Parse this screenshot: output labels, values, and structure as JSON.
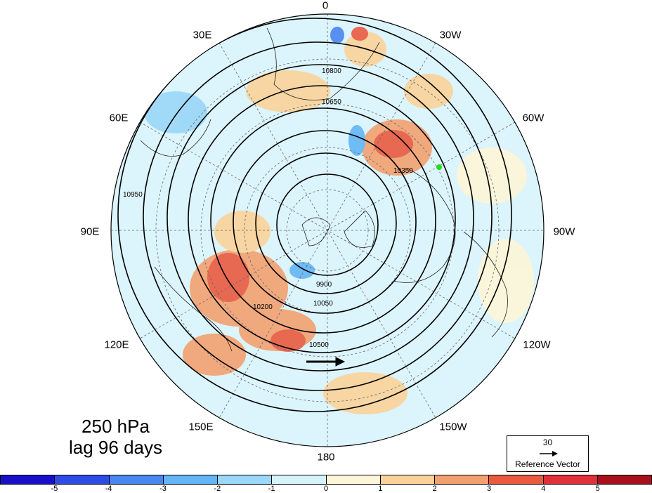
{
  "title": {
    "line1": "250 hPa",
    "line2": "lag 96 days"
  },
  "longitude_labels": [
    "0",
    "30W",
    "60W",
    "90W",
    "120W",
    "150W",
    "180",
    "150E",
    "120E",
    "90E",
    "60E",
    "30E"
  ],
  "contour_labels": [
    "10800",
    "10650",
    "10500",
    "10350",
    "10200",
    "10050",
    "9900",
    "10950"
  ],
  "reference_vector": {
    "value": "30",
    "label": "Reference Vector"
  },
  "colorbar": {
    "ticks": [
      "-5",
      "-4",
      "-3",
      "-2",
      "-1",
      "0",
      "1",
      "2",
      "3",
      "4",
      "5"
    ],
    "colors": [
      "#1a0fc8",
      "#2e4be6",
      "#4a86f0",
      "#63b5f6",
      "#9ad7f8",
      "#d6f3fb",
      "#fdf6d8",
      "#fad39a",
      "#f3a070",
      "#ea5a40",
      "#e0303a",
      "#a8101e"
    ]
  }
}
